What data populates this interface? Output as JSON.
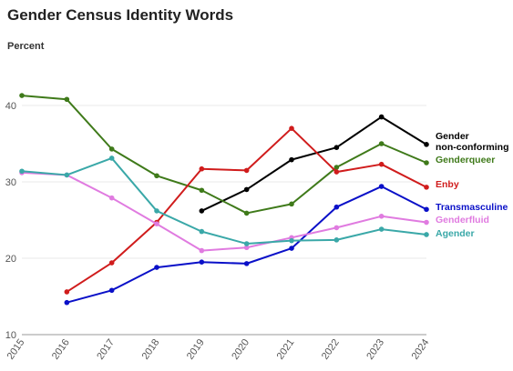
{
  "chart_data": {
    "type": "line",
    "title": "Gender Census Identity Words",
    "ylabel": "Percent",
    "xlabel": "",
    "x": [
      "2015",
      "2016",
      "2017",
      "2018",
      "2019",
      "2020",
      "2021",
      "2022",
      "2023",
      "2024"
    ],
    "ylim": [
      10,
      45
    ],
    "yticks": [
      10,
      20,
      30,
      40
    ],
    "grid": true,
    "legend": "inline-right",
    "series": [
      {
        "name": "Gender non-conforming",
        "label_lines": [
          "Gender",
          "non-conforming"
        ],
        "color": "#000000",
        "values": [
          null,
          null,
          null,
          null,
          26.2,
          29.0,
          32.9,
          34.5,
          38.5,
          34.9
        ]
      },
      {
        "name": "Genderqueer",
        "label_lines": [
          "Genderqueer"
        ],
        "color": "#3f7a1a",
        "values": [
          41.3,
          40.8,
          34.3,
          30.8,
          28.9,
          25.9,
          27.1,
          31.9,
          35.0,
          32.5
        ]
      },
      {
        "name": "Enby",
        "label_lines": [
          "Enby"
        ],
        "color": "#d01c1c",
        "values": [
          null,
          15.6,
          19.4,
          24.7,
          31.7,
          31.5,
          37.0,
          31.3,
          32.3,
          29.3
        ]
      },
      {
        "name": "Transmasculine",
        "label_lines": [
          "Transmasculine"
        ],
        "color": "#0a10c8",
        "values": [
          null,
          14.2,
          15.8,
          18.8,
          19.5,
          19.3,
          21.3,
          26.7,
          29.4,
          26.4
        ]
      },
      {
        "name": "Genderfluid",
        "label_lines": [
          "Genderfluid"
        ],
        "color": "#e07be0",
        "values": [
          31.2,
          30.9,
          27.9,
          24.5,
          21.0,
          21.4,
          22.7,
          24.0,
          25.5,
          24.7
        ]
      },
      {
        "name": "Agender",
        "label_lines": [
          "Agender"
        ],
        "color": "#3aa8a8",
        "values": [
          31.4,
          30.9,
          33.1,
          26.2,
          23.5,
          21.9,
          22.3,
          22.4,
          23.8,
          23.1
        ]
      }
    ]
  }
}
